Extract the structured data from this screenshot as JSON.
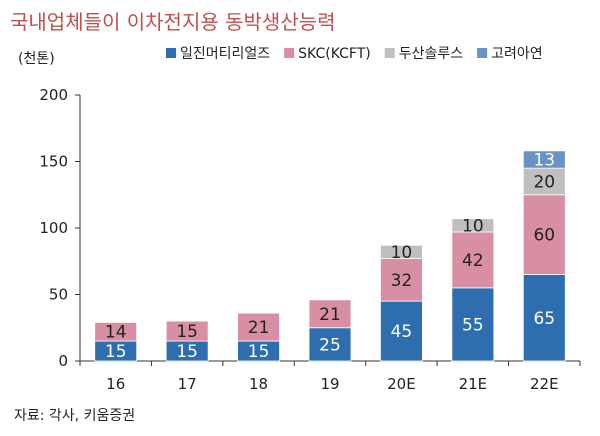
{
  "header": {
    "title": "국내업체들이 이차전지용 동박생산능력",
    "unit": "(천톤)"
  },
  "footer": {
    "source": "자료: 각사, 키움증권"
  },
  "chart_data": {
    "type": "bar",
    "stacked": true,
    "categories": [
      "16",
      "17",
      "18",
      "19",
      "20E",
      "21E",
      "22E"
    ],
    "series": [
      {
        "name": "일진머티리얼즈",
        "color": "#2f6eae",
        "values": [
          15,
          15,
          15,
          25,
          45,
          55,
          65
        ]
      },
      {
        "name": "SKC(KCFT)",
        "color": "#d88fa3",
        "values": [
          14,
          15,
          21,
          21,
          32,
          42,
          60
        ]
      },
      {
        "name": "두산솔루스",
        "color": "#bfbfbf",
        "values": [
          0,
          0,
          0,
          0,
          10,
          10,
          20
        ]
      },
      {
        "name": "고려아연",
        "color": "#6a92c4",
        "values": [
          0,
          0,
          0,
          0,
          0,
          0,
          13
        ]
      }
    ],
    "ylim": [
      0,
      200
    ],
    "yticks": [
      0,
      50,
      100,
      150,
      200
    ],
    "grid": false,
    "legend": "top"
  }
}
